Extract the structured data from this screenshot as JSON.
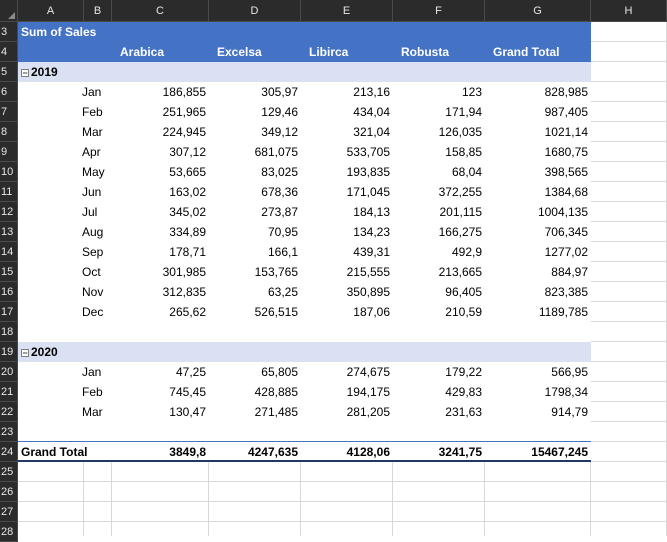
{
  "columns": [
    "A",
    "B",
    "C",
    "D",
    "E",
    "F",
    "G",
    "H"
  ],
  "rows": [
    "3",
    "4",
    "5",
    "6",
    "7",
    "8",
    "9",
    "10",
    "11",
    "12",
    "13",
    "14",
    "15",
    "16",
    "17",
    "18",
    "19",
    "20",
    "21",
    "22",
    "23",
    "24",
    "25",
    "26",
    "27",
    "28"
  ],
  "pivot": {
    "title": "Sum of Sales",
    "headers": [
      "Arabica",
      "Excelsa",
      "Libirca",
      "Robusta",
      "Grand Total"
    ],
    "groups": [
      {
        "year": "2019",
        "rows": [
          {
            "month": "Jan",
            "values": [
              "186,855",
              "305,97",
              "213,16",
              "123",
              "828,985"
            ]
          },
          {
            "month": "Feb",
            "values": [
              "251,965",
              "129,46",
              "434,04",
              "171,94",
              "987,405"
            ]
          },
          {
            "month": "Mar",
            "values": [
              "224,945",
              "349,12",
              "321,04",
              "126,035",
              "1021,14"
            ]
          },
          {
            "month": "Apr",
            "values": [
              "307,12",
              "681,075",
              "533,705",
              "158,85",
              "1680,75"
            ]
          },
          {
            "month": "May",
            "values": [
              "53,665",
              "83,025",
              "193,835",
              "68,04",
              "398,565"
            ]
          },
          {
            "month": "Jun",
            "values": [
              "163,02",
              "678,36",
              "171,045",
              "372,255",
              "1384,68"
            ]
          },
          {
            "month": "Jul",
            "values": [
              "345,02",
              "273,87",
              "184,13",
              "201,115",
              "1004,135"
            ]
          },
          {
            "month": "Aug",
            "values": [
              "334,89",
              "70,95",
              "134,23",
              "166,275",
              "706,345"
            ]
          },
          {
            "month": "Sep",
            "values": [
              "178,71",
              "166,1",
              "439,31",
              "492,9",
              "1277,02"
            ]
          },
          {
            "month": "Oct",
            "values": [
              "301,985",
              "153,765",
              "215,555",
              "213,665",
              "884,97"
            ]
          },
          {
            "month": "Nov",
            "values": [
              "312,835",
              "63,25",
              "350,895",
              "96,405",
              "823,385"
            ]
          },
          {
            "month": "Dec",
            "values": [
              "265,62",
              "526,515",
              "187,06",
              "210,59",
              "1189,785"
            ]
          }
        ]
      },
      {
        "year": "2020",
        "rows": [
          {
            "month": "Jan",
            "values": [
              "47,25",
              "65,805",
              "274,675",
              "179,22",
              "566,95"
            ]
          },
          {
            "month": "Feb",
            "values": [
              "745,45",
              "428,885",
              "194,175",
              "429,83",
              "1798,34"
            ]
          },
          {
            "month": "Mar",
            "values": [
              "130,47",
              "271,485",
              "281,205",
              "231,63",
              "914,79"
            ]
          }
        ]
      }
    ],
    "grand_total": {
      "label": "Grand Total",
      "values": [
        "3849,8",
        "4247,635",
        "4128,06",
        "3241,75",
        "15467,245"
      ]
    }
  }
}
